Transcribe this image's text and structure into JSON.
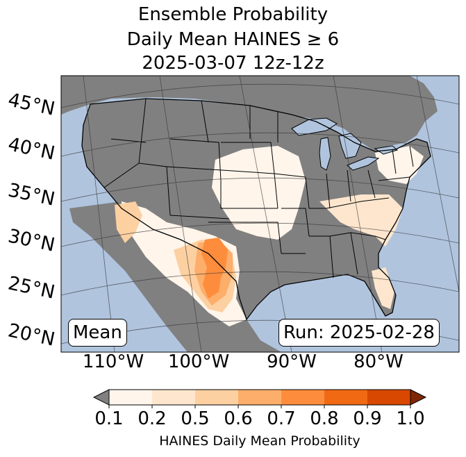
{
  "title": {
    "line1": "Ensemble Probability",
    "line2": "Daily Mean HAINES ≥ 6",
    "line3": "2025-03-07 12z-12z"
  },
  "labels": {
    "mean": "Mean",
    "run": "Run: 2025-02-28"
  },
  "lat_labels": [
    "45°N",
    "40°N",
    "35°N",
    "30°N",
    "25°N",
    "20°N"
  ],
  "lon_labels": [
    "110°W",
    "100°W",
    "90°W",
    "80°W"
  ],
  "colorbar": {
    "ticks": [
      "0.1",
      "0.2",
      "0.5",
      "0.6",
      "0.7",
      "0.8",
      "0.9",
      "1.0"
    ],
    "colors": [
      "#fff5eb",
      "#fee6ce",
      "#fdd0a2",
      "#fdae6b",
      "#fd8d3c",
      "#f16913",
      "#d94801",
      "#a63603"
    ],
    "under_color": "#808080",
    "over_color": "#7f2704",
    "label": "HAINES Daily Mean Probability"
  },
  "colors": {
    "ocean": "#b0c4de",
    "land_masked": "#808080",
    "lake": "#b0c4de"
  }
}
